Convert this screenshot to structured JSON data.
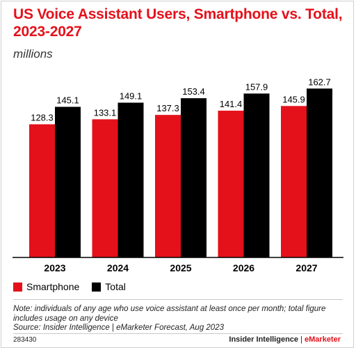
{
  "chart": {
    "title": "US Voice Assistant Users, Smartphone vs. Total, 2023-2027",
    "subtitle": "millions",
    "note": "Note: individuals of any age who use voice assistant at least once per month; total figure includes usage on any device",
    "source": "Source: Insider Intelligence | eMarketer Forecast, Aug 2023",
    "chart_id": "283430",
    "brand": {
      "name": "Insider Intelligence",
      "separator": " | ",
      "accent": "eMarketer"
    }
  },
  "chart_data": {
    "type": "bar",
    "categories": [
      "2023",
      "2024",
      "2025",
      "2026",
      "2027"
    ],
    "series": [
      {
        "name": "Smartphone",
        "values": [
          128.3,
          133.1,
          137.3,
          141.4,
          145.9
        ],
        "color": "#e4111b"
      },
      {
        "name": "Total",
        "values": [
          145.1,
          149.1,
          153.4,
          157.9,
          162.7
        ],
        "color": "#000000"
      }
    ],
    "ylim": [
      0,
      185
    ],
    "grid": false,
    "legend_position": "bottom-left"
  }
}
